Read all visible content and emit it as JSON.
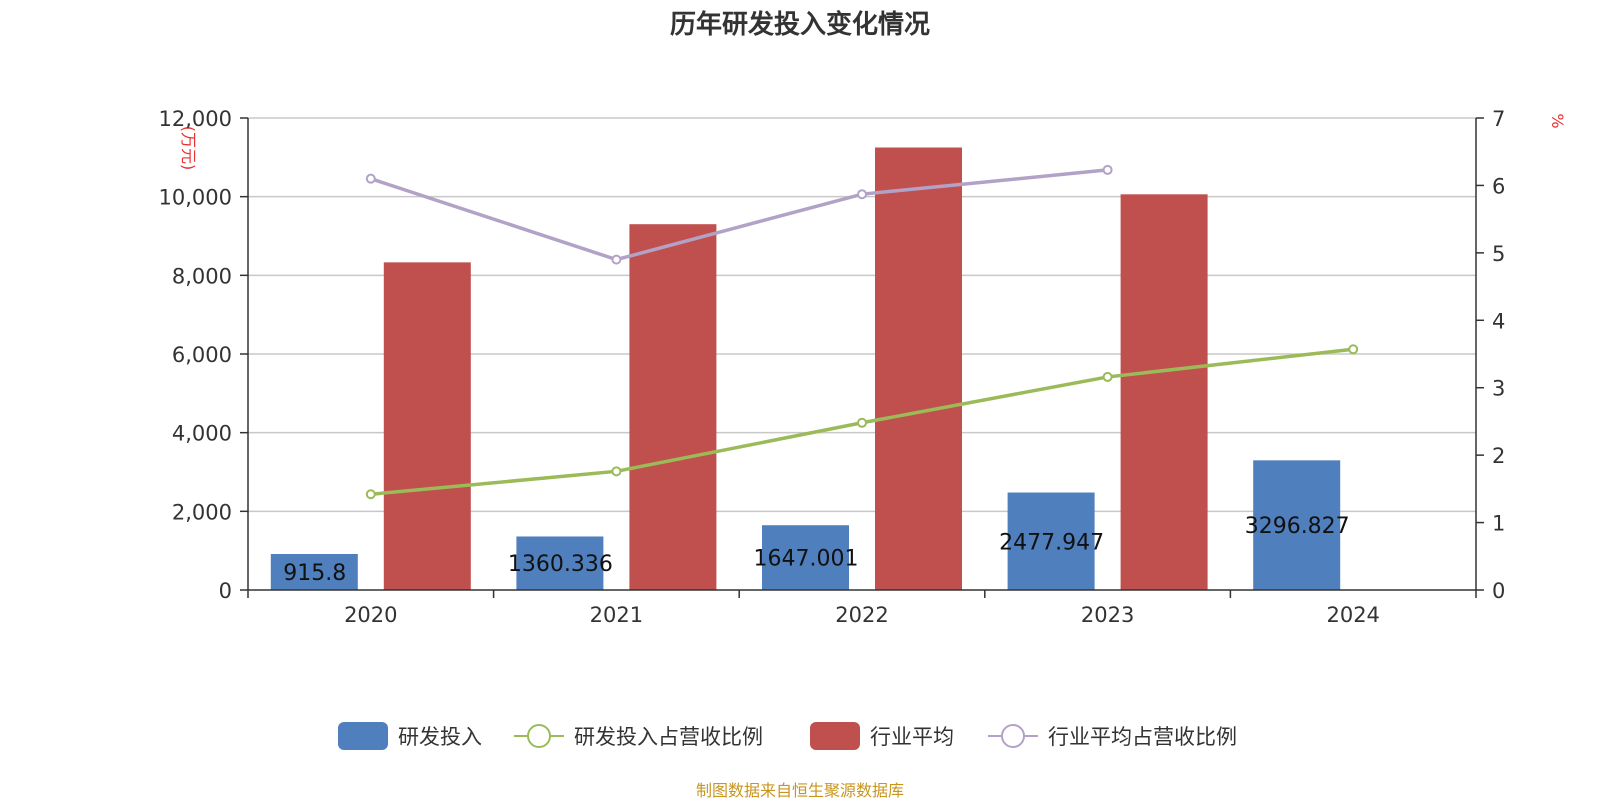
{
  "chart_data": {
    "type": "bar",
    "title": "历年研发投入变化情况",
    "left_unit": "(万元)",
    "right_unit": "%",
    "categories": [
      "2020",
      "2021",
      "2022",
      "2023",
      "2024"
    ],
    "left_axis": {
      "min": 0,
      "max": 12000,
      "ticks": [
        "0",
        "2,000",
        "4,000",
        "6,000",
        "8,000",
        "10,000",
        "12,000"
      ]
    },
    "right_axis": {
      "min": 0,
      "max": 7,
      "ticks": [
        "0",
        "1",
        "2",
        "3",
        "4",
        "5",
        "6",
        "7"
      ]
    },
    "series": [
      {
        "name": "研发投入",
        "type": "bar",
        "axis": "left",
        "values": [
          915.8,
          1360.336,
          1647.001,
          2477.947,
          3296.827
        ],
        "labels": [
          "915.8",
          "1360.336",
          "1647.001",
          "2477.947",
          "3296.827"
        ]
      },
      {
        "name": "研发投入占营收比例",
        "type": "line",
        "axis": "right",
        "values": [
          1.42,
          1.76,
          2.48,
          3.16,
          3.57
        ]
      },
      {
        "name": "行业平均",
        "type": "bar",
        "axis": "left",
        "values": [
          8330,
          9300,
          11250,
          10060,
          null
        ]
      },
      {
        "name": "行业平均占营收比例",
        "type": "line",
        "axis": "right",
        "values": [
          6.1,
          4.9,
          5.87,
          6.23,
          null
        ]
      }
    ],
    "colors": {
      "rd_bar": "#4f7fbd",
      "industry_bar": "#c0504d",
      "rd_ratio_line": "#9bbb59",
      "industry_ratio_line": "#b3a2c7",
      "grid": "#c8c8c8",
      "axis": "#333333"
    },
    "grid": true,
    "legend_position": "bottom"
  },
  "footer": {
    "source": "制图数据来自恒生聚源数据库"
  }
}
